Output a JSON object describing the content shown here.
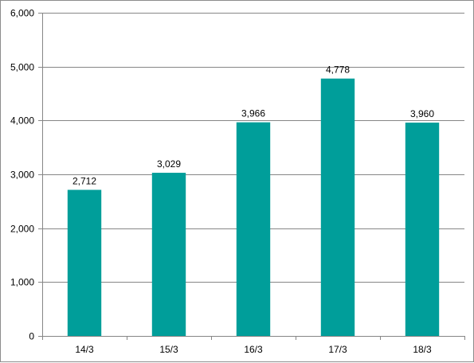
{
  "chart_data": {
    "type": "bar",
    "categories": [
      "14/3",
      "15/3",
      "16/3",
      "17/3",
      "18/3"
    ],
    "values": [
      2712,
      3029,
      3966,
      4778,
      3960
    ],
    "data_labels": [
      "2,712",
      "3,029",
      "3,966",
      "4,778",
      "3,960"
    ],
    "y_tick_values": [
      0,
      1000,
      2000,
      3000,
      4000,
      5000,
      6000
    ],
    "y_tick_labels": [
      "0",
      "1,000",
      "2,000",
      "3,000",
      "4,000",
      "5,000",
      "6,000"
    ],
    "ylim": [
      0,
      6000
    ],
    "grid": true,
    "legend": "none",
    "title": "",
    "xlabel": "",
    "ylabel": "",
    "colors": {
      "bar": "#009e9a",
      "grid": "#868686",
      "axis": "#868686"
    }
  }
}
